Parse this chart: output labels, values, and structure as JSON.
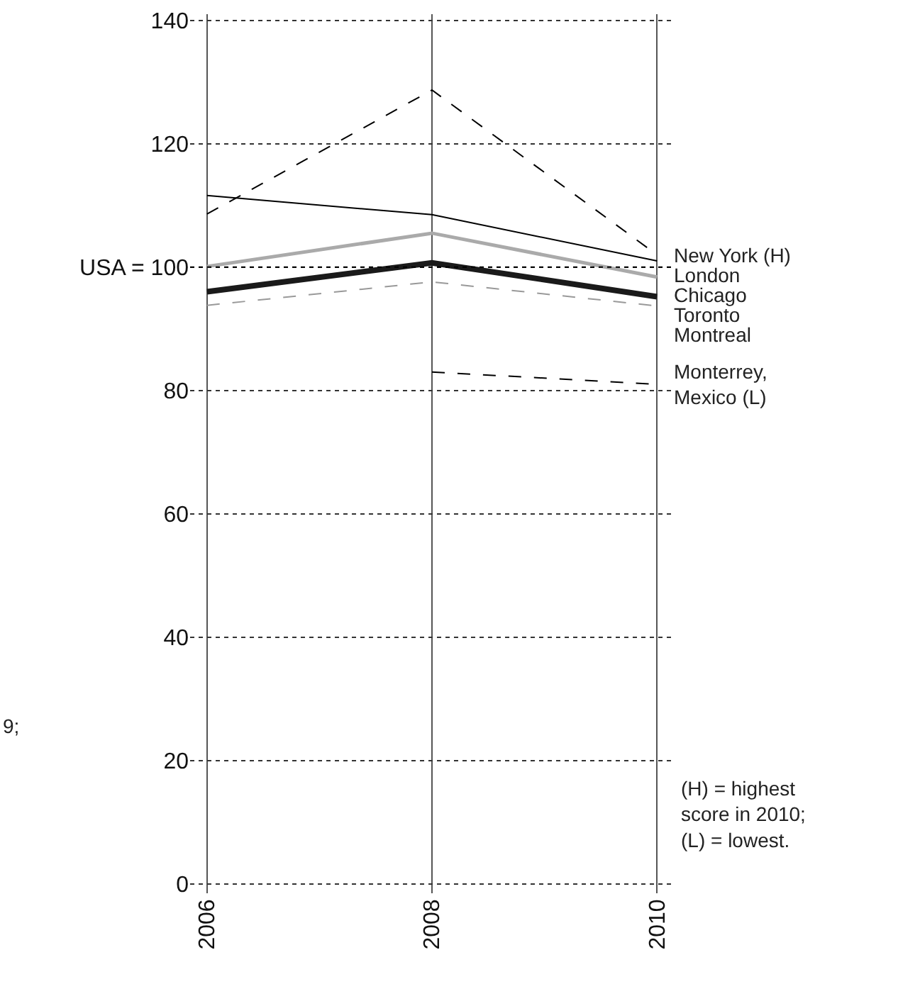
{
  "chart_data": {
    "type": "line",
    "x": [
      2006,
      2008,
      2010
    ],
    "xlim": [
      2005.85,
      2010.15
    ],
    "xticks": [
      2006,
      2008,
      2010
    ],
    "ylim": [
      -1.5,
      141
    ],
    "yticks": [
      0,
      20,
      40,
      60,
      80,
      {
        "value": 100,
        "label": "USA = 100"
      },
      120,
      140
    ],
    "grid": true,
    "marker": "none",
    "series": [
      {
        "name": "New York (H)",
        "color": "#000000",
        "line_style": "dashed",
        "values": [
          108.6,
          128.7,
          102
        ]
      },
      {
        "name": "London",
        "color": "#000000",
        "line_style": "solid",
        "values": [
          111.6,
          108.5,
          101
        ]
      },
      {
        "name": "Chicago",
        "color": "#aaaaaa",
        "line_style": "solid",
        "values": [
          100.1,
          105.5,
          98.4
        ]
      },
      {
        "name": "Toronto",
        "color": "#1a1a1a",
        "line_style": "solid",
        "values": [
          96.0,
          100.7,
          95.2
        ]
      },
      {
        "name": "Montreal",
        "color": "#999999",
        "line_style": "dashed",
        "values": [
          93.8,
          97.6,
          93.7
        ]
      },
      {
        "name": "Monterrey,\nMexico (L)",
        "color": "#000000",
        "line_style": "dashed",
        "values": [
          null,
          83.0,
          81.0
        ]
      }
    ],
    "ref_lines": [
      {
        "axis": "y",
        "value": 100,
        "line_style": "dotted",
        "color": "#000000"
      }
    ],
    "annotations": [
      "(H) = highest\nscore in 2010;\n(L) = lowest.",
      "9;"
    ]
  }
}
